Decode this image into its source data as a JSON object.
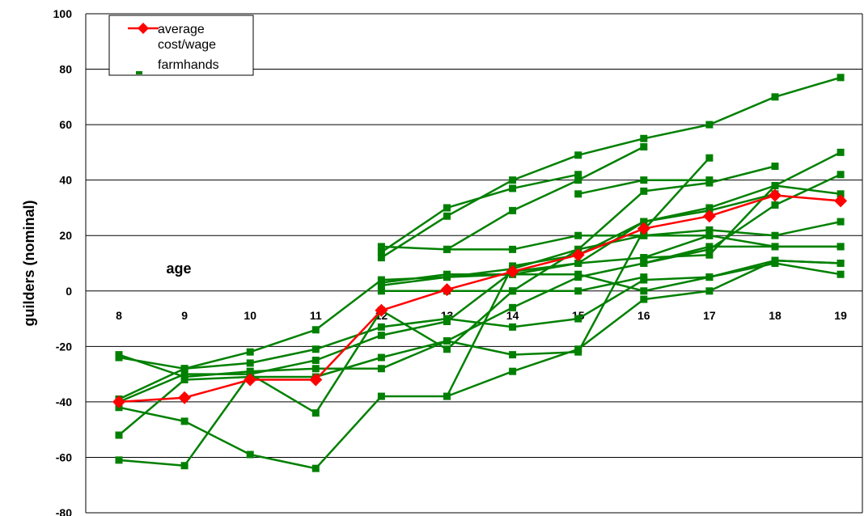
{
  "chart_data": {
    "type": "line",
    "title": "",
    "xlabel": "age",
    "ylabel": "guilders (nominal)",
    "categories": [
      "8",
      "9",
      "10",
      "11",
      "12",
      "13",
      "14",
      "15",
      "16",
      "17",
      "18",
      "19"
    ],
    "ylim": [
      -80,
      100
    ],
    "yticks": [
      -80,
      -60,
      -40,
      -20,
      0,
      20,
      40,
      60,
      80,
      100
    ],
    "grid": "horizontal",
    "legend_position": "top-left",
    "colors": {
      "average": "#ff0000",
      "farmhands": "#008000",
      "grid": "#000000"
    },
    "legend": [
      {
        "label_lines": [
          "average",
          "cost/wage"
        ],
        "series": "average"
      },
      {
        "label_lines": [
          "farmhands"
        ],
        "series": "farmhands"
      }
    ],
    "series": [
      {
        "name": "average cost/wage",
        "role": "average",
        "values": [
          -40,
          -38.5,
          -32,
          -32,
          -7,
          0.5,
          7,
          13,
          22.5,
          27,
          34.5,
          32.5
        ]
      },
      {
        "role": "farmhands",
        "values": [
          -23,
          -31,
          -29,
          -28,
          -28,
          -18,
          -6,
          5,
          10,
          15,
          31,
          42
        ]
      },
      {
        "role": "farmhands",
        "values": [
          -24,
          -28,
          -22,
          -14,
          4,
          5,
          8,
          15,
          20,
          22,
          20,
          25
        ]
      },
      {
        "role": "farmhands",
        "values": [
          -39,
          -28,
          -26,
          -21,
          -13,
          -10,
          -13,
          -10,
          4,
          5,
          11,
          10
        ]
      },
      {
        "role": "farmhands",
        "values": [
          -40,
          -30,
          -30,
          -25,
          -16,
          -11,
          7,
          10,
          25,
          30,
          38,
          35
        ]
      },
      {
        "role": "farmhands",
        "values": [
          -42,
          -47,
          -59,
          -64,
          -38,
          -38,
          9,
          13,
          25,
          29,
          35,
          null
        ]
      },
      {
        "role": "farmhands",
        "values": [
          -52,
          -32,
          -31,
          -31,
          -24,
          -18,
          -23,
          -22,
          22,
          48,
          null,
          null
        ]
      },
      {
        "role": "farmhands",
        "values": [
          -61,
          -63,
          -30,
          -44,
          -7,
          -21,
          0,
          0,
          5,
          null,
          null,
          null
        ]
      },
      {
        "role": "farmhands",
        "values": [
          null,
          null,
          null,
          null,
          16,
          15,
          15,
          20,
          20,
          20,
          16,
          16
        ]
      },
      {
        "role": "farmhands",
        "values": [
          null,
          null,
          null,
          null,
          12,
          27,
          40,
          49,
          55,
          60,
          70,
          77
        ]
      },
      {
        "role": "farmhands",
        "values": [
          null,
          null,
          null,
          null,
          14,
          30,
          37,
          42,
          null,
          null,
          null,
          null
        ]
      },
      {
        "role": "farmhands",
        "values": [
          null,
          null,
          null,
          null,
          3,
          6,
          6,
          10,
          12,
          20,
          null,
          null
        ]
      },
      {
        "role": "farmhands",
        "values": [
          null,
          null,
          null,
          null,
          2,
          5,
          6,
          6,
          0,
          5,
          10,
          6
        ]
      },
      {
        "role": "farmhands",
        "values": [
          null,
          null,
          null,
          null,
          0,
          0,
          0,
          15,
          36,
          39,
          45,
          null
        ]
      },
      {
        "role": "farmhands",
        "values": [
          null,
          null,
          null,
          null,
          null,
          15,
          29,
          40,
          52,
          null,
          null,
          null
        ]
      },
      {
        "role": "farmhands",
        "values": [
          null,
          null,
          null,
          null,
          null,
          null,
          null,
          35,
          40,
          40,
          null,
          null
        ]
      },
      {
        "role": "farmhands",
        "values": [
          null,
          null,
          null,
          null,
          null,
          -38,
          -29,
          -21,
          -3,
          0,
          11,
          10
        ]
      },
      {
        "role": "farmhands",
        "values": [
          null,
          null,
          null,
          null,
          null,
          null,
          null,
          null,
          10,
          16,
          16,
          16
        ]
      },
      {
        "role": "farmhands",
        "values": [
          null,
          null,
          null,
          null,
          null,
          null,
          null,
          null,
          12,
          13,
          38,
          50
        ]
      }
    ]
  }
}
